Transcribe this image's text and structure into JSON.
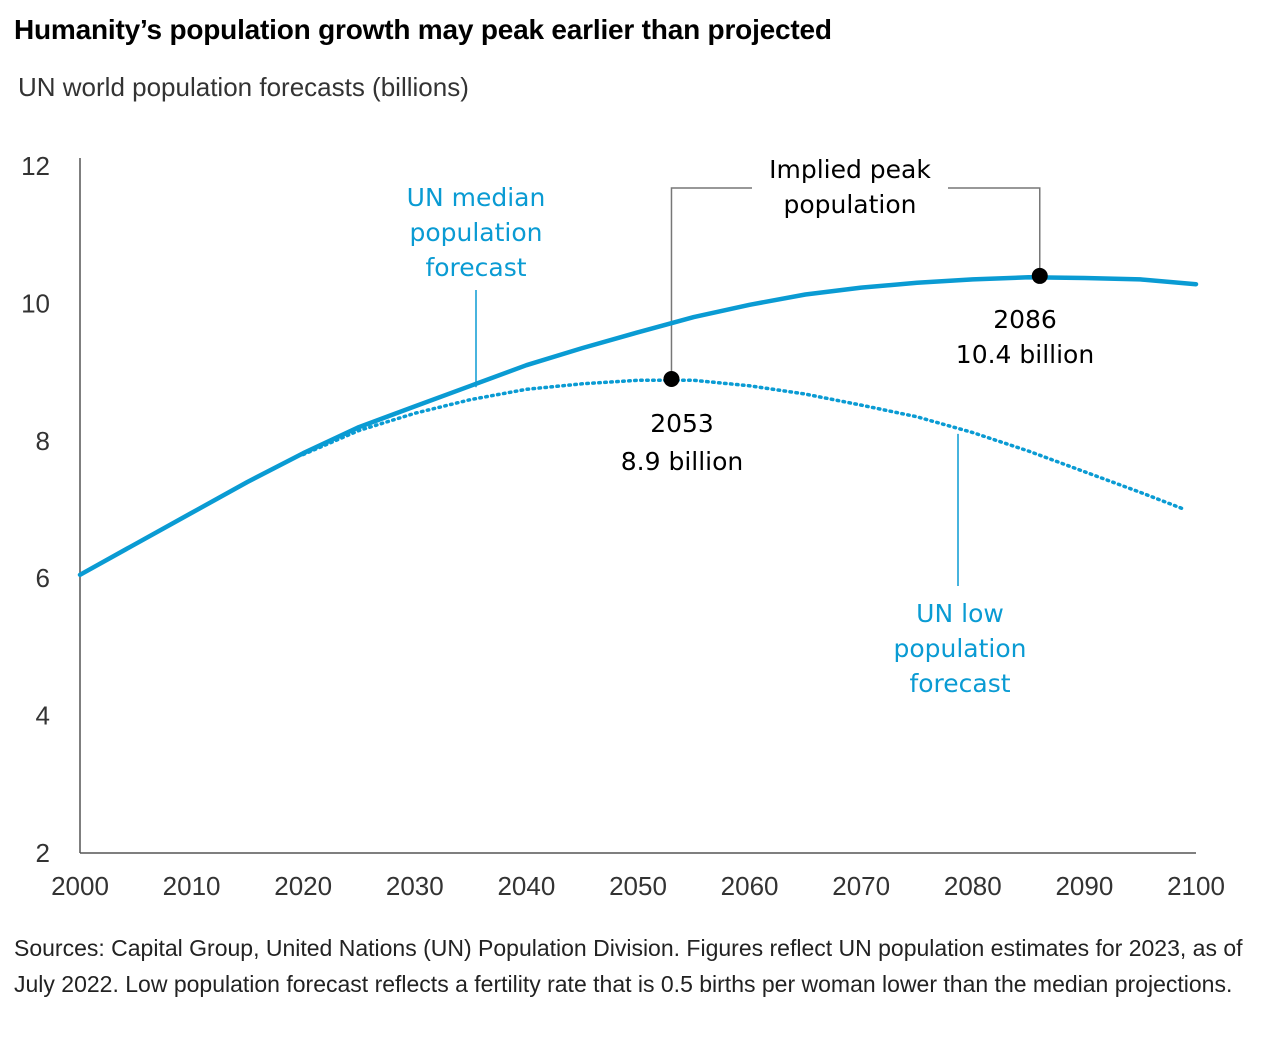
{
  "title": "Humanity’s population growth may peak earlier than projected",
  "subtitle": "UN world population forecasts (billions)",
  "source": "Sources: Capital Group, United Nations (UN) Population Division. Figures reflect UN population estimates for 2023, as of July 2022. Low population forecast reflects a fertility rate that is 0.5 births per woman lower than the median projections.",
  "colors": {
    "line": "#0a9bd3",
    "axis": "#555555",
    "leader": "#777777",
    "marker": "#000000"
  },
  "chart_data": {
    "type": "line",
    "xlim": [
      2000,
      2100
    ],
    "ylim": [
      2,
      12
    ],
    "x_ticks": [
      2000,
      2010,
      2020,
      2030,
      2040,
      2050,
      2060,
      2070,
      2080,
      2090,
      2100
    ],
    "y_ticks": [
      2,
      4,
      6,
      8,
      10,
      12
    ],
    "grid": false,
    "series": [
      {
        "name": "UN median population forecast",
        "style": "solid",
        "x": [
          2000,
          2005,
          2010,
          2015,
          2020,
          2025,
          2030,
          2035,
          2040,
          2045,
          2050,
          2055,
          2060,
          2065,
          2070,
          2075,
          2080,
          2085,
          2090,
          2095,
          2100
        ],
        "values": [
          6.05,
          6.5,
          6.95,
          7.4,
          7.82,
          8.2,
          8.5,
          8.8,
          9.1,
          9.35,
          9.58,
          9.8,
          9.98,
          10.13,
          10.23,
          10.3,
          10.35,
          10.38,
          10.37,
          10.35,
          10.28
        ]
      },
      {
        "name": "UN low population forecast",
        "style": "dotted",
        "x": [
          2020,
          2025,
          2030,
          2035,
          2040,
          2045,
          2050,
          2055,
          2060,
          2065,
          2070,
          2075,
          2080,
          2085,
          2090,
          2095,
          2099
        ],
        "values": [
          7.8,
          8.15,
          8.4,
          8.6,
          8.75,
          8.83,
          8.88,
          8.88,
          8.8,
          8.68,
          8.52,
          8.35,
          8.12,
          7.85,
          7.55,
          7.25,
          7.0
        ]
      }
    ],
    "annotations": {
      "median_label": [
        "UN median",
        "population",
        "forecast"
      ],
      "low_label": [
        "UN low",
        "population",
        "forecast"
      ],
      "peak_title": [
        "Implied peak",
        "population"
      ],
      "median_peak": {
        "x": 2086,
        "y": 10.4,
        "year_label": "2086",
        "value_label": "10.4 billion"
      },
      "low_peak": {
        "x": 2053,
        "y": 8.9,
        "year_label": "2053",
        "value_label": "8.9 billion"
      }
    }
  }
}
